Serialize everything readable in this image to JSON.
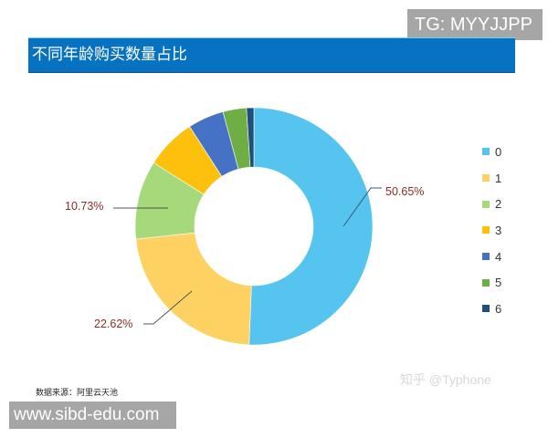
{
  "watermarks": {
    "tg": "TG: MYYJJPP",
    "url": "www.sibd-edu.com",
    "zhihu": "知乎 @Typhone"
  },
  "header": {
    "title": "不同年龄购买数量占比"
  },
  "footer": {
    "source": "数据来源：阿里云天池"
  },
  "chart_data": {
    "type": "pie",
    "variant": "donut",
    "title": "不同年龄购买数量占比",
    "categories": [
      "0",
      "1",
      "2",
      "3",
      "4",
      "5",
      "6"
    ],
    "values": [
      50.65,
      22.62,
      10.73,
      6.9,
      4.9,
      3.2,
      1.0
    ],
    "colors": [
      "#55c5ef",
      "#fdd262",
      "#a6d97a",
      "#fcc00d",
      "#4572c4",
      "#6fae45",
      "#1f4f7a"
    ],
    "data_labels": [
      {
        "category": "0",
        "text": "50.65%"
      },
      {
        "category": "1",
        "text": "22.62%"
      },
      {
        "category": "2",
        "text": "10.73%"
      }
    ],
    "legend": {
      "position": "right",
      "entries": [
        "0",
        "1",
        "2",
        "3",
        "4",
        "5",
        "6"
      ]
    },
    "start_angle_deg": 0,
    "direction": "clockwise",
    "label_color": "#8b2a2a"
  }
}
